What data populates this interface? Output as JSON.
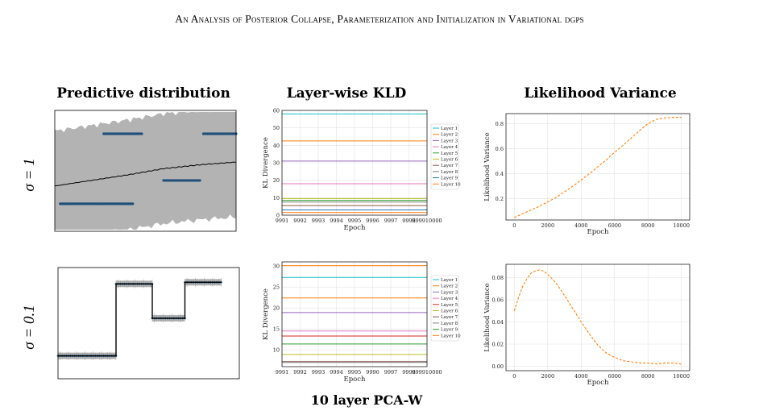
{
  "running_head": "An Analysis of Posterior Collapse, Parameterization and Initialization in Variational dgps",
  "column_titles": {
    "predictive": "Predictive distribution",
    "kld": "Layer-wise KLD",
    "variance": "Likelihood Variance"
  },
  "row_labels": [
    "σ = 1",
    "σ = 0.1"
  ],
  "caption": "10 layer PCA-W",
  "colors": {
    "layers": [
      "#1f77b4",
      "#ff7f0e",
      "#2ca02c",
      "#d62728",
      "#9467bd",
      "#8c564b",
      "#e377c2",
      "#7f7f7f",
      "#bcbd22",
      "#17becf"
    ],
    "variance_line": "#ff7f0e",
    "band": "#b3b3b3",
    "data_points": "#1f4e79",
    "mean_line": "#000000"
  },
  "chart_data": [
    {
      "type": "line",
      "panel": "kld_sigma_1",
      "xlabel": "Epoch",
      "ylabel": "KL Divergence",
      "xlim": [
        9991,
        10000
      ],
      "x_ticks": [
        "9991",
        "9992",
        "9993",
        "9994",
        "9995",
        "9996",
        "9997",
        "9998",
        "999910000"
      ],
      "ylim": [
        0,
        60
      ],
      "y_ticks": [
        "0",
        "10",
        "20",
        "30",
        "40",
        "50",
        "60"
      ],
      "grid": true,
      "legend": "right",
      "series": [
        {
          "name": "Layer 1",
          "value": 58,
          "color_idx": 9
        },
        {
          "name": "Layer 2",
          "value": 42.5,
          "color_idx": 1
        },
        {
          "name": "Layer 3",
          "value": 31,
          "color_idx": 4
        },
        {
          "name": "Layer 4",
          "value": 18,
          "color_idx": 6
        },
        {
          "name": "Layer 5",
          "value": 8.5,
          "color_idx": 2
        },
        {
          "name": "Layer 6",
          "value": 9.5,
          "color_idx": 8
        },
        {
          "name": "Layer 7",
          "value": 5.5,
          "color_idx": 5
        },
        {
          "name": "Layer 8",
          "value": 7.5,
          "color_idx": 7
        },
        {
          "name": "Layer 9",
          "value": 3,
          "color_idx": 0
        },
        {
          "name": "Layer 10",
          "value": 1.5,
          "color_idx": 1
        }
      ]
    },
    {
      "type": "line",
      "panel": "variance_sigma_1",
      "xlabel": "Epoch",
      "ylabel": "Likelihood Variance",
      "xlim": [
        -500,
        10500
      ],
      "x_ticks": [
        0,
        2000,
        4000,
        6000,
        8000,
        10000
      ],
      "ylim": [
        0.03,
        0.88
      ],
      "y_ticks": [
        0.2,
        0.4,
        0.6,
        0.8
      ],
      "grid": true,
      "style": "dashed",
      "x": [
        0,
        500,
        1000,
        1500,
        2000,
        2500,
        3000,
        3500,
        4000,
        4500,
        5000,
        5500,
        6000,
        6500,
        7000,
        7500,
        8000,
        8500,
        9000,
        9500,
        10000
      ],
      "y": [
        0.05,
        0.08,
        0.11,
        0.14,
        0.175,
        0.21,
        0.255,
        0.3,
        0.35,
        0.4,
        0.455,
        0.51,
        0.57,
        0.625,
        0.685,
        0.745,
        0.8,
        0.835,
        0.845,
        0.85,
        0.85
      ]
    },
    {
      "type": "line",
      "panel": "kld_sigma_0.1",
      "xlabel": "Epoch",
      "ylabel": "KL Divergence",
      "xlim": [
        9991,
        10000
      ],
      "x_ticks": [
        "9991",
        "9992",
        "9993",
        "9994",
        "9995",
        "9996",
        "9997",
        "9998",
        "999910000"
      ],
      "ylim": [
        6,
        31
      ],
      "y_ticks": [
        "10",
        "15",
        "20",
        "25",
        "30"
      ],
      "grid": true,
      "legend": "right",
      "series": [
        {
          "name": "Layer 1",
          "value": 27.3,
          "color_idx": 9
        },
        {
          "name": "Layer 2",
          "value": 30.1,
          "color_idx": 1
        },
        {
          "name": "Layer 3",
          "value": 18.9,
          "color_idx": 4
        },
        {
          "name": "Layer 4",
          "value": 14.5,
          "color_idx": 6
        },
        {
          "name": "Layer 5",
          "value": 13.3,
          "color_idx": 3
        },
        {
          "name": "Layer 6",
          "value": 8.9,
          "color_idx": 8
        },
        {
          "name": "Layer 7",
          "value": 7.2,
          "color_idx": 5
        },
        {
          "name": "Layer 8",
          "value": 7.0,
          "color_idx": 7
        },
        {
          "name": "Layer 9",
          "value": 11.4,
          "color_idx": 2
        },
        {
          "name": "Layer 10",
          "value": 22.4,
          "color_idx": 1
        }
      ]
    },
    {
      "type": "line",
      "panel": "variance_sigma_0.1",
      "xlabel": "Epoch",
      "ylabel": "Likelihood Variance",
      "xlim": [
        -500,
        10500
      ],
      "x_ticks": [
        0,
        2000,
        4000,
        6000,
        8000,
        10000
      ],
      "ylim": [
        -0.004,
        0.092
      ],
      "y_ticks": [
        0.0,
        0.02,
        0.04,
        0.06,
        0.08
      ],
      "grid": true,
      "style": "dashed",
      "x": [
        0,
        250,
        500,
        750,
        1000,
        1250,
        1500,
        1750,
        2000,
        2500,
        3000,
        3500,
        4000,
        4500,
        5000,
        5500,
        6000,
        6500,
        7000,
        7500,
        8000,
        8500,
        9000,
        9500,
        10000
      ],
      "y": [
        0.05,
        0.062,
        0.072,
        0.079,
        0.084,
        0.086,
        0.087,
        0.086,
        0.083,
        0.075,
        0.064,
        0.052,
        0.04,
        0.029,
        0.019,
        0.012,
        0.008,
        0.005,
        0.004,
        0.003,
        0.003,
        0.002,
        0.003,
        0.003,
        0.002
      ]
    },
    {
      "type": "scatter",
      "panel": "predictive_sigma_1",
      "ylim": [
        -2.2,
        2.2
      ],
      "xlim": [
        0,
        1
      ],
      "mean_line": [
        [
          0.0,
          -0.55
        ],
        [
          0.2,
          -0.35
        ],
        [
          0.4,
          -0.15
        ],
        [
          0.6,
          0.08
        ],
        [
          0.8,
          0.22
        ],
        [
          1.0,
          0.32
        ]
      ],
      "band_half_width": 2.0,
      "clusters": [
        {
          "x": [
            0.03,
            0.43
          ],
          "y": -1.2
        },
        {
          "x": [
            0.27,
            0.48
          ],
          "y": 1.35
        },
        {
          "x": [
            0.6,
            0.8
          ],
          "y": -0.35
        },
        {
          "x": [
            0.82,
            1.0
          ],
          "y": 1.35
        }
      ]
    },
    {
      "type": "line",
      "panel": "predictive_sigma_0.1",
      "xlim": [
        0,
        1
      ],
      "ylim": [
        -1.6,
        1.8
      ],
      "steps": [
        {
          "x": [
            0.0,
            0.32
          ],
          "y": -0.9
        },
        {
          "x": [
            0.32,
            0.52
          ],
          "y": 1.3
        },
        {
          "x": [
            0.52,
            0.7
          ],
          "y": 0.25
        },
        {
          "x": [
            0.7,
            0.9
          ],
          "y": 1.35
        }
      ]
    }
  ]
}
